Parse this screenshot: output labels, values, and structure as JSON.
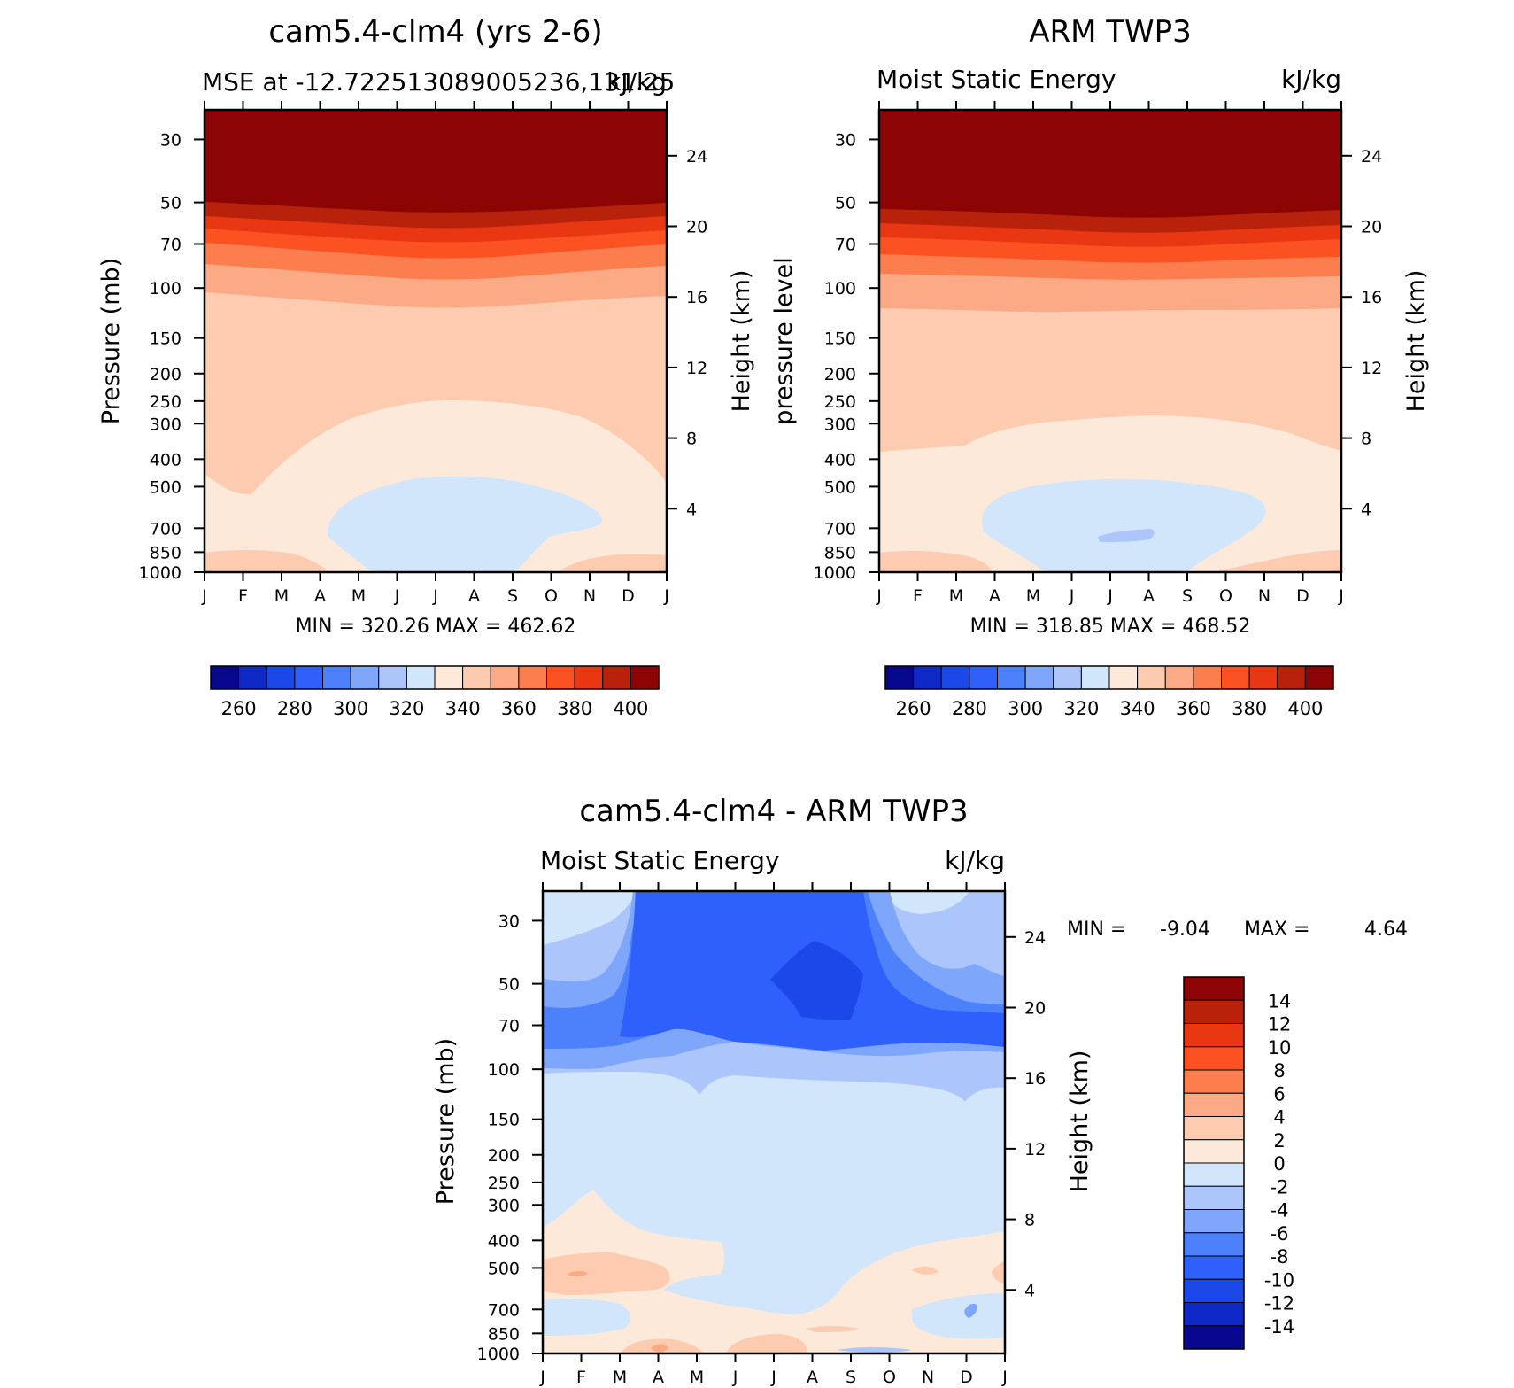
{
  "chart_data": [
    {
      "type": "heatmap",
      "title": "cam5.4-clm4 (yrs 2-6)",
      "subtitle_left": "MSE at -12.722513089005236,131.25",
      "subtitle_right": "kJ/kg",
      "ylabel": "Pressure (mb)",
      "right_label": "Height (km)",
      "x_ticks": [
        "J",
        "F",
        "M",
        "A",
        "M",
        "J",
        "J",
        "A",
        "S",
        "O",
        "N",
        "D",
        "J"
      ],
      "y_ticks": [
        "30",
        "50",
        "70",
        "100",
        "150",
        "200",
        "250",
        "300",
        "400",
        "500",
        "700",
        "850",
        "1000"
      ],
      "right_ticks": [
        "24",
        "20",
        "16",
        "12",
        "8",
        "4"
      ],
      "stats": "MIN = 320.26 MAX = 462.62",
      "min": 320.26,
      "max": 462.62,
      "colorbar": {
        "orientation": "horizontal",
        "labels": [
          "260",
          "280",
          "300",
          "320",
          "340",
          "360",
          "380",
          "400"
        ],
        "levels": [
          250,
          260,
          270,
          280,
          290,
          300,
          310,
          320,
          330,
          340,
          350,
          360,
          370,
          380,
          390,
          400
        ]
      }
    },
    {
      "type": "heatmap",
      "title": "ARM TWP3",
      "subtitle_left": "Moist Static Energy",
      "subtitle_right": "kJ/kg",
      "ylabel": "pressure level",
      "right_label": "Height (km)",
      "x_ticks": [
        "J",
        "F",
        "M",
        "A",
        "M",
        "J",
        "J",
        "A",
        "S",
        "O",
        "N",
        "D",
        "J"
      ],
      "y_ticks": [
        "30",
        "50",
        "70",
        "100",
        "150",
        "200",
        "250",
        "300",
        "400",
        "500",
        "700",
        "850",
        "1000"
      ],
      "right_ticks": [
        "24",
        "20",
        "16",
        "12",
        "8",
        "4"
      ],
      "stats": "MIN = 318.85 MAX = 468.52",
      "min": 318.85,
      "max": 468.52,
      "colorbar": {
        "orientation": "horizontal",
        "labels": [
          "260",
          "280",
          "300",
          "320",
          "340",
          "360",
          "380",
          "400"
        ],
        "levels": [
          250,
          260,
          270,
          280,
          290,
          300,
          310,
          320,
          330,
          340,
          350,
          360,
          370,
          380,
          390,
          400
        ]
      }
    },
    {
      "type": "heatmap",
      "title": "cam5.4-clm4 - ARM TWP3",
      "subtitle_left": "Moist Static Energy",
      "subtitle_right": "kJ/kg",
      "ylabel": "Pressure (mb)",
      "right_label": "Height (km)",
      "x_ticks": [
        "J",
        "F",
        "M",
        "A",
        "M",
        "J",
        "J",
        "A",
        "S",
        "O",
        "N",
        "D",
        "J"
      ],
      "y_ticks": [
        "30",
        "50",
        "70",
        "100",
        "150",
        "200",
        "250",
        "300",
        "400",
        "500",
        "700",
        "850",
        "1000"
      ],
      "right_ticks": [
        "24",
        "20",
        "16",
        "12",
        "8",
        "4"
      ],
      "stats_min_label": "MIN =",
      "stats_min_value": "-9.04",
      "stats_max_label": "MAX =",
      "stats_max_value": "4.64",
      "min": -9.04,
      "max": 4.64,
      "colorbar": {
        "orientation": "vertical",
        "labels": [
          "14",
          "12",
          "10",
          "8",
          "6",
          "4",
          "2",
          "0",
          "-2",
          "-4",
          "-6",
          "-8",
          "-10",
          "-12",
          "-14"
        ],
        "levels": [
          16,
          14,
          12,
          10,
          8,
          6,
          4,
          2,
          0,
          -2,
          -4,
          -6,
          -8,
          -10,
          -12,
          -14,
          -16
        ]
      }
    }
  ],
  "colors": {
    "palette": [
      "#08088f",
      "#0f29c7",
      "#1c48e8",
      "#2f60fb",
      "#4d80fb",
      "#7ea6fb",
      "#acc6fb",
      "#d2e6fb",
      "#fde9d9",
      "#fccbb0",
      "#fcaa85",
      "#fc7e4f",
      "#fc5222",
      "#e83712",
      "#b9220a",
      "#8c0404"
    ],
    "frame": "#000000"
  }
}
